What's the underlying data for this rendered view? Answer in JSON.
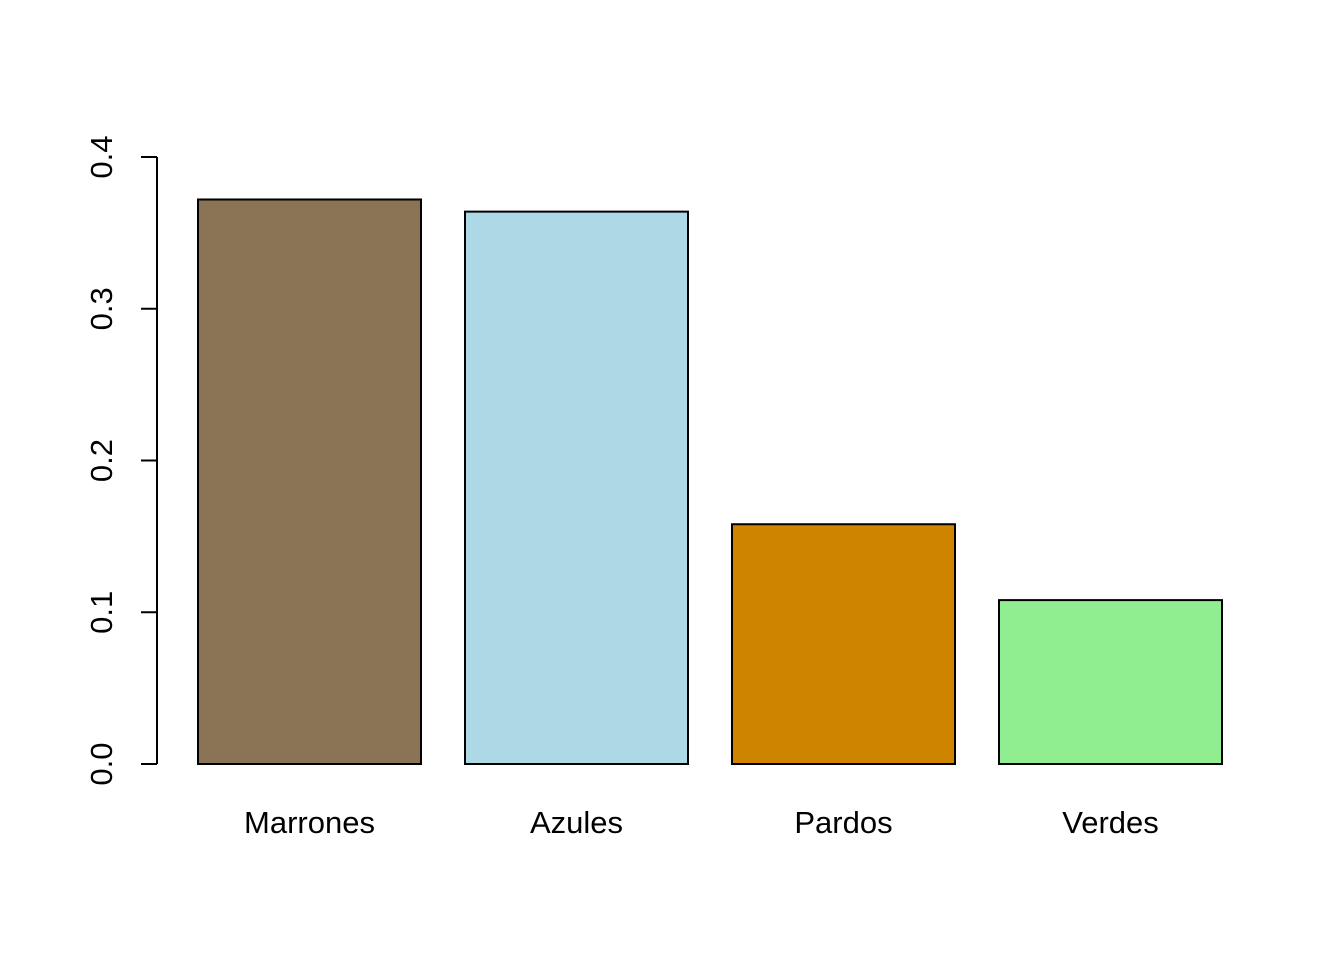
{
  "chart_data": {
    "type": "bar",
    "title": "",
    "xlabel": "",
    "ylabel": "",
    "categories": [
      "Marrones",
      "Azules",
      "Pardos",
      "Verdes"
    ],
    "values": [
      0.372,
      0.364,
      0.158,
      0.108
    ],
    "colors": [
      "#8B7355",
      "#ADD8E6",
      "#CD8500",
      "#90EE90"
    ],
    "ylim": [
      0,
      0.4
    ],
    "yticks": [
      "0.0",
      "0.1",
      "0.2",
      "0.3",
      "0.4"
    ],
    "grid": false,
    "legend": "none"
  }
}
